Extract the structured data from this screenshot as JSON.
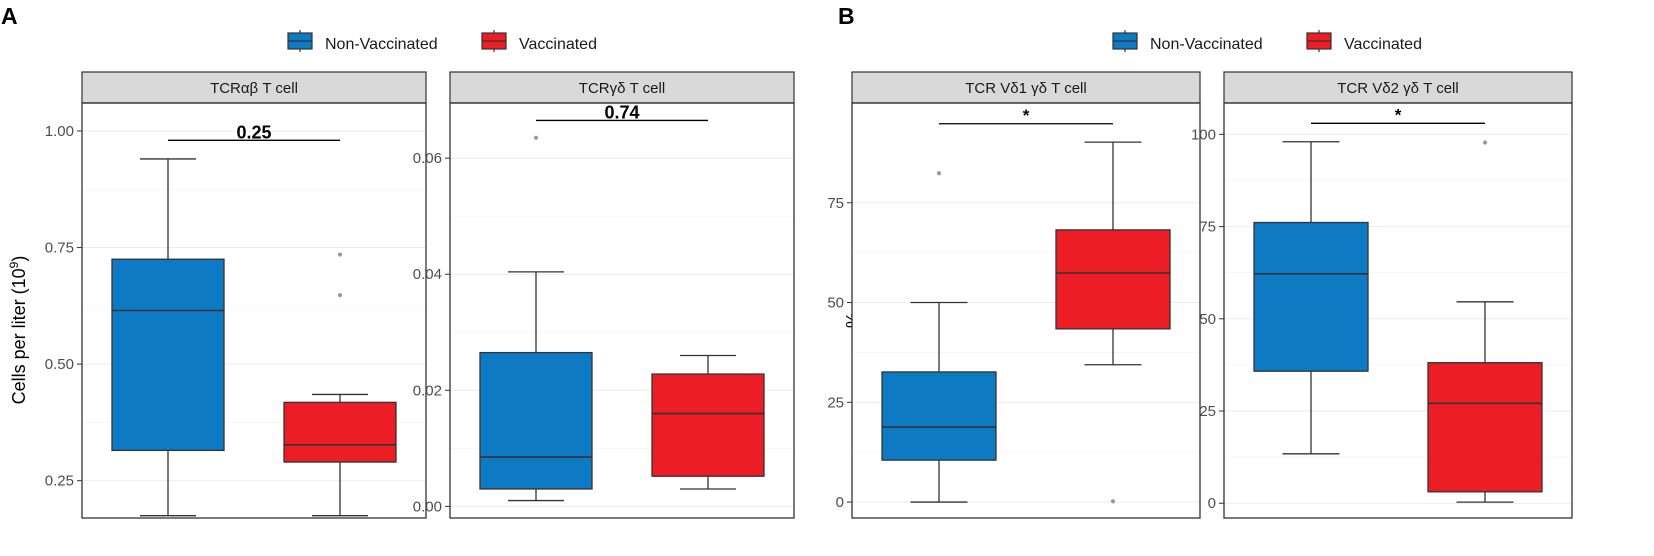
{
  "colors": {
    "non_vaccinated": "#0f7ac4",
    "vaccinated": "#ec1d25",
    "strip_fill": "#d9d9d9",
    "grid": "#ebebeb",
    "outlier": "#999999",
    "ink": "#333333",
    "tick_text": "#4d4d4d"
  },
  "legend": {
    "items": [
      {
        "label": "Non-Vaccinated",
        "color": "#0f7ac4"
      },
      {
        "label": "Vaccinated",
        "color": "#ec1d25"
      }
    ]
  },
  "panels": [
    {
      "letter": "A",
      "ylabel": "Cells per liter (10",
      "ylabel_sup": "9",
      "ylabel_close": ")"
    },
    {
      "letter": "B",
      "ylabel": "%"
    }
  ],
  "chart_data": [
    {
      "type": "box",
      "panel": "A",
      "title": "TCRαβ T cell",
      "ylim": [
        0.17,
        1.06
      ],
      "yticks": [
        0.25,
        0.5,
        0.75,
        1.0
      ],
      "ytick_labels": [
        "0.25",
        "0.50",
        "0.75",
        "1.00"
      ],
      "series": [
        {
          "name": "Non-Vaccinated",
          "whisker_low": 0.175,
          "q1": 0.315,
          "median": 0.615,
          "q3": 0.725,
          "whisker_high": 0.94,
          "outliers": []
        },
        {
          "name": "Vaccinated",
          "whisker_low": 0.175,
          "q1": 0.29,
          "median": 0.327,
          "q3": 0.418,
          "whisker_high": 0.435,
          "outliers": [
            0.735,
            0.648
          ]
        }
      ],
      "significance": {
        "label": "0.25",
        "y": 0.98
      }
    },
    {
      "type": "box",
      "panel": "A",
      "title": "TCRγδ T cell",
      "ylim": [
        -0.002,
        0.0695
      ],
      "yticks": [
        0.0,
        0.02,
        0.04,
        0.06
      ],
      "ytick_labels": [
        "0.00",
        "0.02",
        "0.04",
        "0.06"
      ],
      "series": [
        {
          "name": "Non-Vaccinated",
          "whisker_low": 0.001,
          "q1": 0.003,
          "median": 0.0085,
          "q3": 0.0265,
          "whisker_high": 0.0404,
          "outliers": [
            0.0635
          ]
        },
        {
          "name": "Vaccinated",
          "whisker_low": 0.003,
          "q1": 0.0052,
          "median": 0.016,
          "q3": 0.0228,
          "whisker_high": 0.026,
          "outliers": []
        }
      ],
      "significance": {
        "label": "0.74",
        "y": 0.0665
      }
    },
    {
      "type": "box",
      "panel": "B",
      "title": "TCR Vδ1 γδ T cell",
      "ylim": [
        -4,
        100
      ],
      "yticks": [
        0,
        25,
        50,
        75
      ],
      "ytick_labels": [
        "0",
        "25",
        "50",
        "75"
      ],
      "series": [
        {
          "name": "Non-Vaccinated",
          "whisker_low": 0,
          "q1": 10.5,
          "median": 18.8,
          "q3": 32.6,
          "whisker_high": 50,
          "outliers": [
            82.4
          ]
        },
        {
          "name": "Vaccinated",
          "whisker_low": 34.4,
          "q1": 43.4,
          "median": 57.4,
          "q3": 68.2,
          "whisker_high": 90.2,
          "outliers": [
            0.2
          ]
        }
      ],
      "significance": {
        "label": "*",
        "y": 94.8
      }
    },
    {
      "type": "box",
      "panel": "B",
      "title": "TCR Vδ2 γδ T cell",
      "ylim": [
        -4,
        108.5
      ],
      "yticks": [
        0,
        25,
        50,
        75,
        100
      ],
      "ytick_labels": [
        "0",
        "25",
        "50",
        "75",
        "100"
      ],
      "series": [
        {
          "name": "Non-Vaccinated",
          "whisker_low": 13.4,
          "q1": 35.8,
          "median": 62.2,
          "q3": 76.1,
          "whisker_high": 98,
          "outliers": []
        },
        {
          "name": "Vaccinated",
          "whisker_low": 0.3,
          "q1": 3.1,
          "median": 27.1,
          "q3": 38.1,
          "whisker_high": 54.6,
          "outliers": [
            97.8
          ]
        }
      ],
      "significance": {
        "label": "*",
        "y": 103
      }
    }
  ]
}
